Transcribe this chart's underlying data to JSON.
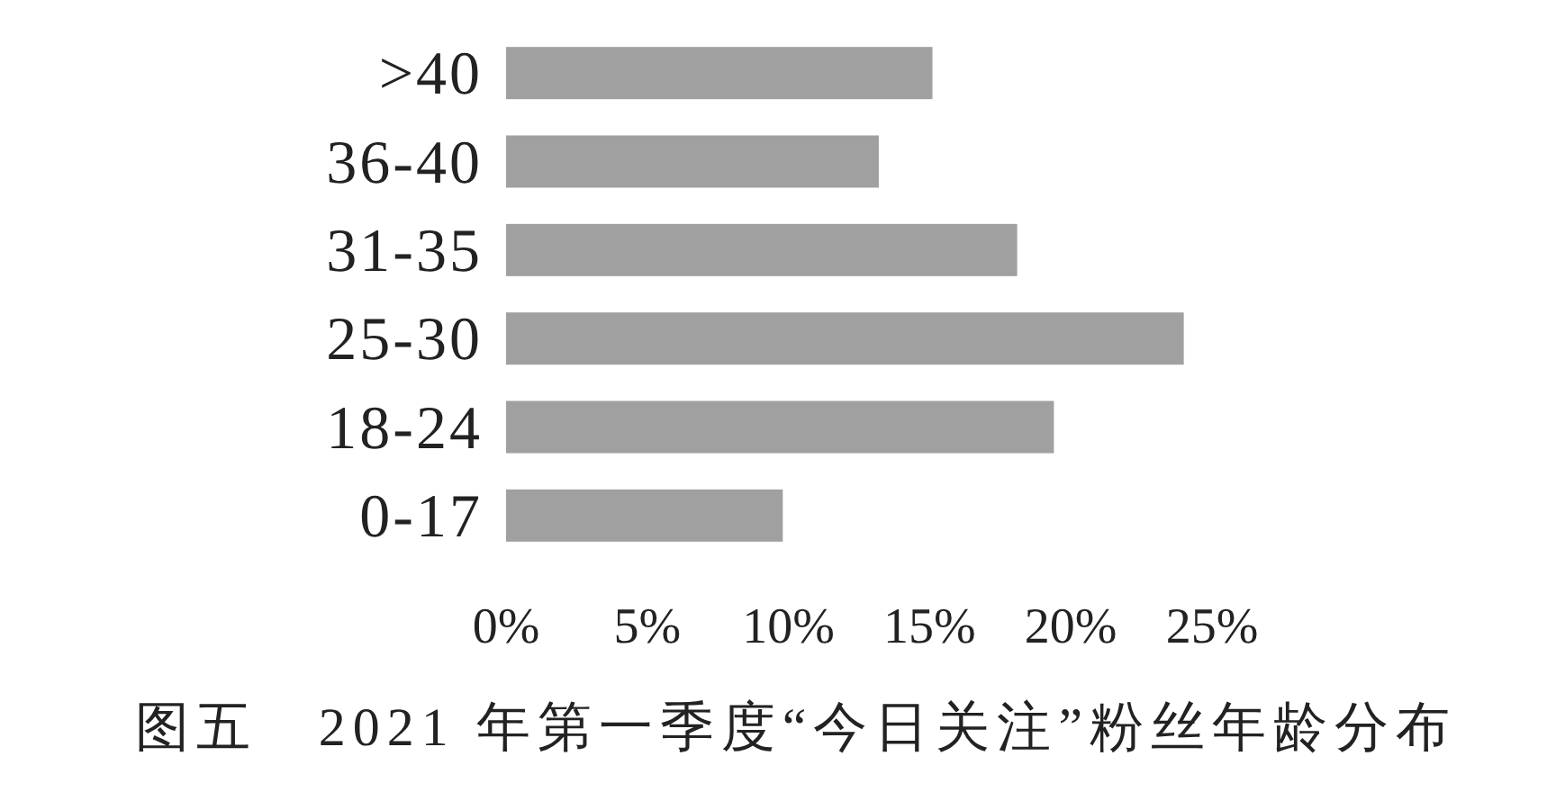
{
  "chart_data": {
    "type": "bar",
    "orientation": "horizontal",
    "title": "图五　2021 年第一季度“今日关注”粉丝年龄分布",
    "categories": [
      ">40",
      "36-40",
      "31-35",
      "25-30",
      "18-24",
      "0-17"
    ],
    "values": [
      15.1,
      13.2,
      18.1,
      24.0,
      19.4,
      9.8
    ],
    "color": "#a0a0a0",
    "xlim": [
      0,
      25
    ],
    "xticks": [
      {
        "value": 0,
        "label": "0%"
      },
      {
        "value": 5,
        "label": "5%"
      },
      {
        "value": 10,
        "label": "10%"
      },
      {
        "value": 15,
        "label": "15%"
      },
      {
        "value": 20,
        "label": "20%"
      },
      {
        "value": 25,
        "label": "25%"
      }
    ]
  }
}
